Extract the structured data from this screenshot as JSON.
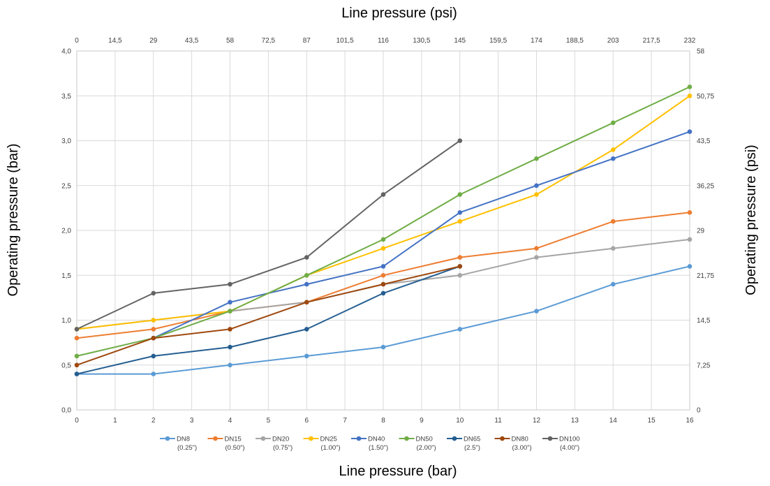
{
  "chart_data": {
    "type": "line",
    "title_top": "Line pressure (psi)",
    "xlabel": "Line pressure (bar)",
    "ylabel": "Operating pressure (bar)",
    "ylabel_right": "Operating pressure (psi)",
    "xlim": [
      0,
      16
    ],
    "ylim": [
      0,
      4
    ],
    "x_ticks": [
      "0",
      "1",
      "2",
      "3",
      "4",
      "5",
      "6",
      "7",
      "8",
      "9",
      "10",
      "11",
      "12",
      "13",
      "14",
      "15",
      "16"
    ],
    "y_ticks": [
      "0,0",
      "0,5",
      "1,0",
      "1,5",
      "2,0",
      "2,5",
      "3,0",
      "3,5",
      "4,0"
    ],
    "x_ticks_top": [
      "0",
      "14,5",
      "29",
      "43,5",
      "58",
      "72,5",
      "87",
      "101,5",
      "116",
      "130,5",
      "145",
      "159,5",
      "174",
      "188,5",
      "203",
      "217,5",
      "232"
    ],
    "y_ticks_right": [
      "0",
      "7,25",
      "14,5",
      "21,75",
      "29",
      "36,25",
      "43,5",
      "50,75",
      "58"
    ],
    "grid": true,
    "legend_position": "bottom",
    "series": [
      {
        "name": "DN8",
        "sub": "(0.25\")",
        "color": "#5b9bd5",
        "x": [
          0,
          2,
          4,
          6,
          8,
          10,
          12,
          14,
          16
        ],
        "y": [
          0.4,
          0.4,
          0.5,
          0.6,
          0.7,
          0.9,
          1.1,
          1.4,
          1.6
        ]
      },
      {
        "name": "DN15",
        "sub": "(0.50\")",
        "color": "#ed7d31",
        "x": [
          0,
          2,
          4,
          6,
          8,
          10,
          12,
          14,
          16
        ],
        "y": [
          0.8,
          0.9,
          1.1,
          1.2,
          1.5,
          1.7,
          1.8,
          2.1,
          2.2
        ]
      },
      {
        "name": "DN20",
        "sub": "(0.75\")",
        "color": "#a5a5a5",
        "x": [
          0,
          2,
          4,
          6,
          8,
          10,
          12,
          14,
          16
        ],
        "y": [
          0.9,
          1.0,
          1.1,
          1.2,
          1.4,
          1.5,
          1.7,
          1.8,
          1.9
        ]
      },
      {
        "name": "DN25",
        "sub": "(1.00\")",
        "color": "#ffc000",
        "x": [
          0,
          2,
          4,
          6,
          8,
          10,
          12,
          14,
          16
        ],
        "y": [
          0.9,
          1.0,
          1.1,
          1.5,
          1.8,
          2.1,
          2.4,
          2.9,
          3.5
        ]
      },
      {
        "name": "DN40",
        "sub": "(1.50\")",
        "color": "#4472c4",
        "x": [
          2,
          4,
          6,
          8,
          10,
          12,
          14,
          16
        ],
        "y": [
          0.8,
          1.2,
          1.4,
          1.6,
          2.2,
          2.5,
          2.8,
          3.1
        ]
      },
      {
        "name": "DN50",
        "sub": "(2.00\")",
        "color": "#70ad47",
        "x": [
          0,
          2,
          4,
          6,
          8,
          10,
          12,
          14,
          16
        ],
        "y": [
          0.6,
          0.8,
          1.1,
          1.5,
          1.9,
          2.4,
          2.8,
          3.2,
          3.6
        ]
      },
      {
        "name": "DN65",
        "sub": "(2.5\")",
        "color": "#255e91",
        "x": [
          0,
          2,
          4,
          6,
          8,
          10
        ],
        "y": [
          0.4,
          0.6,
          0.7,
          0.9,
          1.3,
          1.6
        ]
      },
      {
        "name": "DN80",
        "sub": "(3.00\")",
        "color": "#9e480e",
        "x": [
          0,
          2,
          4,
          6,
          8,
          10
        ],
        "y": [
          0.5,
          0.8,
          0.9,
          1.2,
          1.4,
          1.6
        ]
      },
      {
        "name": "DN100",
        "sub": "(4.00\")",
        "color": "#636363",
        "x": [
          0,
          2,
          4,
          6,
          8,
          10
        ],
        "y": [
          0.9,
          1.3,
          1.4,
          1.7,
          2.4,
          3.0
        ]
      }
    ]
  }
}
